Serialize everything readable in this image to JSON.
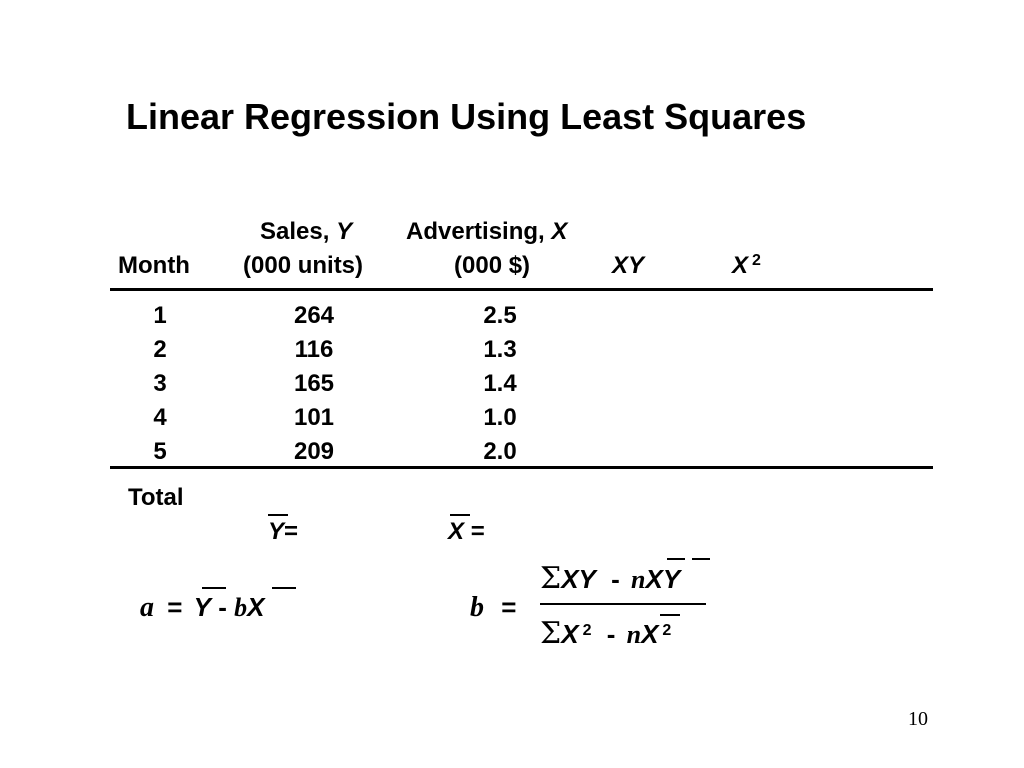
{
  "title": "Linear Regression Using Least Squares",
  "table": {
    "headers": {
      "month": "Month",
      "sales_top": "Sales,",
      "sales_var": "Y",
      "sales_bottom": "(000 units)",
      "adv_top": "Advertising,",
      "adv_var": "X",
      "adv_bottom": "(000 $)",
      "xy": "XY",
      "x2": "X",
      "x2_exp": "2"
    },
    "rows": [
      {
        "month": "1",
        "sales": "264",
        "adv": "2.5"
      },
      {
        "month": "2",
        "sales": "116",
        "adv": "1.3"
      },
      {
        "month": "3",
        "sales": "165",
        "adv": "1.4"
      },
      {
        "month": "4",
        "sales": "101",
        "adv": "1.0"
      },
      {
        "month": "5",
        "sales": "209",
        "adv": "2.0"
      }
    ],
    "total_label": "Total"
  },
  "means": {
    "y_var": "Y",
    "y_eq": "=",
    "x_var": "X",
    "x_eq": "="
  },
  "formula_a": {
    "lhs": "a",
    "eq": "=",
    "y": "Y",
    "minus": "-",
    "b": "b",
    "x": "X"
  },
  "formula_b": {
    "lhs": "b",
    "eq": "=",
    "num_sigma": "Σ",
    "num_xy": "XY",
    "num_minus": "-",
    "num_n": "n",
    "num_xbar": "X",
    "num_ybar": "Y",
    "den_sigma": "Σ",
    "den_x": "X",
    "den_exp": "2",
    "den_minus": "-",
    "den_n": "n",
    "den_xbar": "X",
    "den_exp2": "2"
  },
  "page_number": "10"
}
